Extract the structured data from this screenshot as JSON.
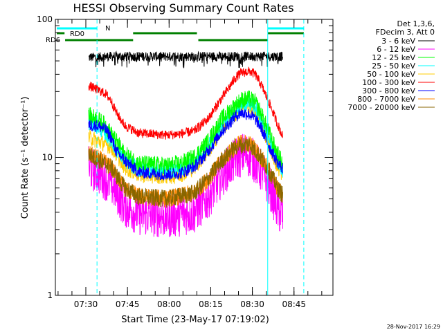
{
  "chart_data": {
    "type": "line",
    "title": "HESSI Observing Summary Count Rates",
    "xlabel": "Start Time (23-May-17 07:19:02)",
    "ylabel": "Count Rate (s⁻¹ detector⁻¹)",
    "y_scale": "log",
    "ylim": [
      1,
      100
    ],
    "y_ticks": [
      {
        "value": 1,
        "label": "1"
      },
      {
        "value": 10,
        "label": "10"
      },
      {
        "value": 100,
        "label": "100"
      }
    ],
    "xlim_minutes": [
      0,
      100
    ],
    "x_ticks": [
      {
        "minute": 10.97,
        "label": "07:30"
      },
      {
        "minute": 25.97,
        "label": "07:45"
      },
      {
        "minute": 40.97,
        "label": "08:00"
      },
      {
        "minute": 55.97,
        "label": "08:15"
      },
      {
        "minute": 70.97,
        "label": "08:30"
      },
      {
        "minute": 85.97,
        "label": "08:45"
      }
    ],
    "legend": {
      "position": "top-right",
      "header": [
        "Det 1,3,6,",
        "FDecim 3, Att 0"
      ],
      "entries": [
        {
          "label": "3 - 6 keV",
          "color": "#000000"
        },
        {
          "label": "6 - 12 keV",
          "color": "#ff00ff"
        },
        {
          "label": "12 - 25 keV",
          "color": "#00ff00"
        },
        {
          "label": "25 - 50 keV",
          "color": "#00ffff"
        },
        {
          "label": "50 - 100 keV",
          "color": "#ffcc00"
        },
        {
          "label": "100 - 300 keV",
          "color": "#ff0000"
        },
        {
          "label": "300 - 800 keV",
          "color": "#0000ff"
        },
        {
          "label": "800 - 7000 keV",
          "color": "#ff8800"
        },
        {
          "label": "7000 - 20000 keV",
          "color": "#886600"
        }
      ]
    },
    "series": [
      {
        "name": "3 - 6 keV",
        "color": "#000000",
        "noise": 0.08,
        "points": [
          [
            12,
            53
          ],
          [
            20,
            54
          ],
          [
            30,
            54
          ],
          [
            45,
            54
          ],
          [
            60,
            54
          ],
          [
            75,
            54
          ],
          [
            82,
            54
          ]
        ]
      },
      {
        "name": "6 - 12 keV",
        "color": "#ff00ff",
        "noise": 0.32,
        "points": [
          [
            12,
            9
          ],
          [
            15,
            8.5
          ],
          [
            20,
            7
          ],
          [
            25,
            4.8
          ],
          [
            30,
            4.2
          ],
          [
            40,
            4.0
          ],
          [
            50,
            4.3
          ],
          [
            55,
            5.5
          ],
          [
            60,
            8
          ],
          [
            65,
            10.5
          ],
          [
            68,
            11.5
          ],
          [
            70,
            11
          ],
          [
            72,
            10
          ],
          [
            75,
            8
          ],
          [
            78,
            6
          ],
          [
            80,
            4.5
          ],
          [
            82,
            4.0
          ]
        ]
      },
      {
        "name": "12 - 25 keV",
        "color": "#00ff00",
        "noise": 0.13,
        "points": [
          [
            12,
            20
          ],
          [
            15,
            19
          ],
          [
            18,
            17
          ],
          [
            22,
            13
          ],
          [
            25,
            10.5
          ],
          [
            30,
            9
          ],
          [
            40,
            8.7
          ],
          [
            45,
            9
          ],
          [
            50,
            10
          ],
          [
            55,
            13
          ],
          [
            60,
            19
          ],
          [
            65,
            24
          ],
          [
            67,
            26
          ],
          [
            70,
            26.5
          ],
          [
            72,
            25
          ],
          [
            74,
            21
          ],
          [
            77,
            15
          ],
          [
            80,
            10.5
          ],
          [
            82,
            9
          ]
        ]
      },
      {
        "name": "25 - 50 keV",
        "color": "#00ffff",
        "noise": 0.12,
        "points": [
          [
            12,
            18
          ],
          [
            15,
            17
          ],
          [
            18,
            15
          ],
          [
            22,
            11.5
          ],
          [
            25,
            9.5
          ],
          [
            30,
            8.2
          ],
          [
            40,
            8
          ],
          [
            45,
            8.3
          ],
          [
            50,
            9
          ],
          [
            55,
            12
          ],
          [
            60,
            17
          ],
          [
            65,
            22
          ],
          [
            67,
            24
          ],
          [
            70,
            24.5
          ],
          [
            72,
            23
          ],
          [
            74,
            19
          ],
          [
            77,
            13.5
          ],
          [
            80,
            9.5
          ],
          [
            82,
            8.2
          ]
        ]
      },
      {
        "name": "50 - 100 keV",
        "color": "#ffcc00",
        "noise": 0.12,
        "points": [
          [
            12,
            14
          ],
          [
            20,
            12
          ],
          [
            25,
            8.5
          ],
          [
            30,
            7.5
          ],
          [
            40,
            7.3
          ],
          [
            45,
            7.5
          ],
          [
            50,
            8.5
          ],
          [
            55,
            11
          ],
          [
            60,
            16
          ],
          [
            65,
            21
          ],
          [
            67,
            23
          ],
          [
            70,
            23.5
          ],
          [
            72,
            22
          ],
          [
            74,
            18
          ],
          [
            77,
            12.5
          ],
          [
            80,
            8.5
          ],
          [
            82,
            7.5
          ]
        ]
      },
      {
        "name": "100 - 300 keV",
        "color": "#ff0000",
        "noise": 0.07,
        "points": [
          [
            12,
            33
          ],
          [
            15,
            31
          ],
          [
            18,
            29
          ],
          [
            20,
            26
          ],
          [
            22,
            21
          ],
          [
            25,
            17
          ],
          [
            30,
            15
          ],
          [
            40,
            14.5
          ],
          [
            45,
            14.8
          ],
          [
            50,
            15.5
          ],
          [
            55,
            19
          ],
          [
            60,
            27
          ],
          [
            63,
            33
          ],
          [
            65,
            38
          ],
          [
            67,
            41
          ],
          [
            70,
            42
          ],
          [
            72,
            40
          ],
          [
            74,
            34
          ],
          [
            77,
            25
          ],
          [
            80,
            17.5
          ],
          [
            82,
            14
          ]
        ]
      },
      {
        "name": "300 - 800 keV",
        "color": "#0000ff",
        "noise": 0.09,
        "points": [
          [
            12,
            17
          ],
          [
            15,
            17
          ],
          [
            18,
            16
          ],
          [
            20,
            14
          ],
          [
            22,
            11
          ],
          [
            25,
            9.5
          ],
          [
            30,
            7.8
          ],
          [
            40,
            7.5
          ],
          [
            45,
            7.7
          ],
          [
            50,
            8.5
          ],
          [
            55,
            11
          ],
          [
            60,
            15.5
          ],
          [
            63,
            18
          ],
          [
            65,
            20
          ],
          [
            67,
            21
          ],
          [
            70,
            20.5
          ],
          [
            72,
            19
          ],
          [
            74,
            16.5
          ],
          [
            77,
            12
          ],
          [
            80,
            9.2
          ],
          [
            82,
            8.2
          ]
        ]
      },
      {
        "name": "800 - 7000 keV",
        "color": "#ff8800",
        "noise": 0.13,
        "points": [
          [
            12,
            10.5
          ],
          [
            15,
            10
          ],
          [
            20,
            8.5
          ],
          [
            25,
            6
          ],
          [
            30,
            5.2
          ],
          [
            40,
            5.0
          ],
          [
            50,
            5.5
          ],
          [
            55,
            7
          ],
          [
            60,
            9.5
          ],
          [
            65,
            12
          ],
          [
            67,
            12.8
          ],
          [
            70,
            12.5
          ],
          [
            72,
            11.5
          ],
          [
            74,
            10
          ],
          [
            77,
            8
          ],
          [
            80,
            6
          ],
          [
            82,
            5.3
          ]
        ]
      },
      {
        "name": "7000 - 20000 keV",
        "color": "#886600",
        "noise": 0.13,
        "points": [
          [
            12,
            10.5
          ],
          [
            20,
            8.5
          ],
          [
            25,
            6
          ],
          [
            30,
            5.2
          ],
          [
            40,
            5.0
          ],
          [
            50,
            5.5
          ],
          [
            55,
            7
          ],
          [
            60,
            9.5
          ],
          [
            65,
            12
          ],
          [
            70,
            12.5
          ],
          [
            74,
            10
          ],
          [
            77,
            8
          ],
          [
            80,
            6
          ],
          [
            82,
            5.3
          ]
        ]
      }
    ],
    "flag_bars": [
      {
        "label": "N",
        "color": "#00ffff",
        "level": "top",
        "segments": [
          [
            0.5,
            15
          ],
          [
            76.5,
            89.5
          ]
        ]
      },
      {
        "label": "RD0",
        "color": "#008000",
        "level": "mid",
        "segments": [
          [
            0.5,
            3.3
          ],
          [
            28,
            51
          ],
          [
            76.5,
            89.5
          ]
        ]
      },
      {
        "label": "RD6",
        "color": "#008000",
        "level": "low",
        "segments": [
          [
            3.5,
            28
          ],
          [
            51.5,
            76.5
          ]
        ]
      }
    ],
    "vertical_markers": [
      {
        "minute": 15,
        "color": "#00ffff",
        "style": "dashed"
      },
      {
        "minute": 76.5,
        "color": "#00ffff",
        "style": "solid"
      },
      {
        "minute": 89.5,
        "color": "#00ffff",
        "style": "dashed"
      }
    ],
    "grid": false
  },
  "footer": {
    "timestamp": "28-Nov-2017 16:29"
  }
}
